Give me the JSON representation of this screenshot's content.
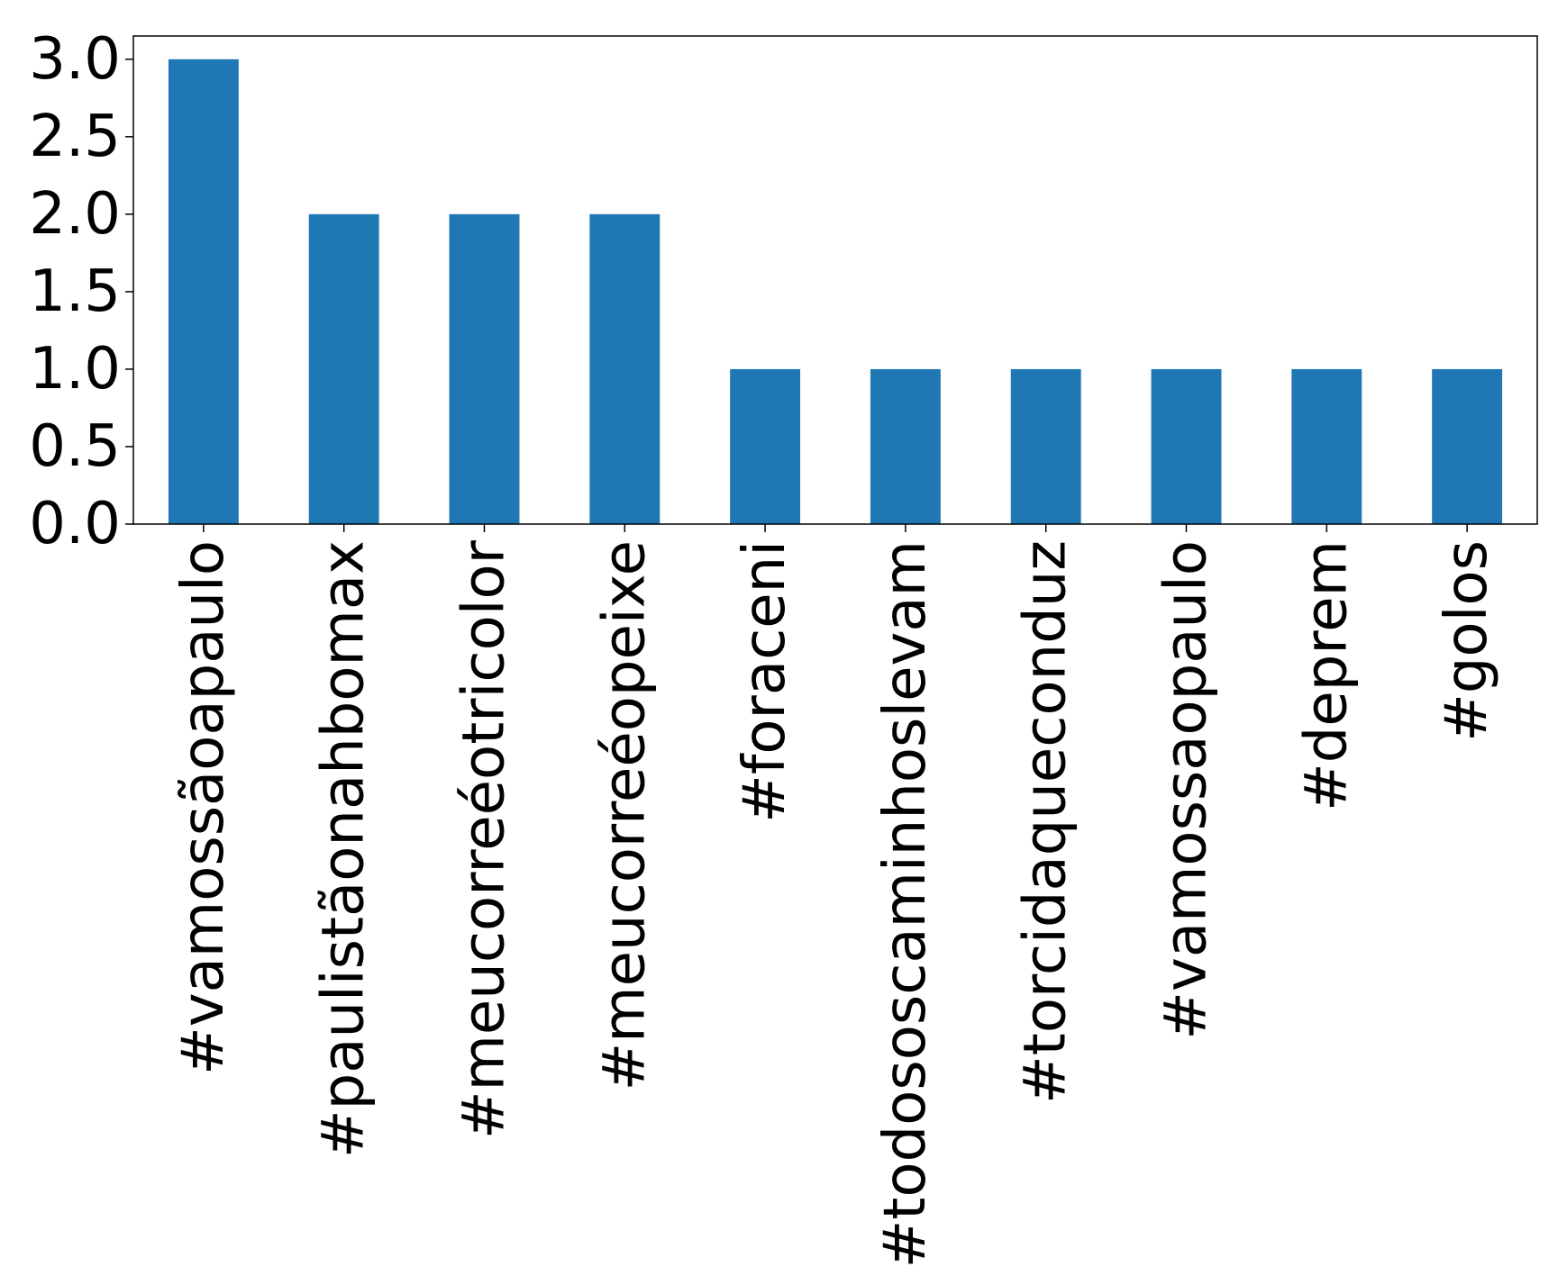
{
  "chart_data": {
    "type": "bar",
    "title": "",
    "xlabel": "",
    "ylabel": "",
    "categories": [
      "#vamossãoapaulo",
      "#paulistãonahbomax",
      "#meucorreéotricolor",
      "#meucorreéopeixe",
      "#foraceni",
      "#todososcaminhoslevam",
      "#torcidaqueconduz",
      "#vamossaopaulo",
      "#deprem",
      "#golos"
    ],
    "values": [
      3,
      2,
      2,
      2,
      1,
      1,
      1,
      1,
      1,
      1
    ],
    "ylim": [
      0,
      3.15
    ],
    "yticks": [
      0.0,
      0.5,
      1.0,
      1.5,
      2.0,
      2.5,
      3.0
    ],
    "ytick_labels": [
      "0.0",
      "0.5",
      "1.0",
      "1.5",
      "2.0",
      "2.5",
      "3.0"
    ],
    "grid": false,
    "legend": "none",
    "bar_color": "#1f77b4"
  }
}
